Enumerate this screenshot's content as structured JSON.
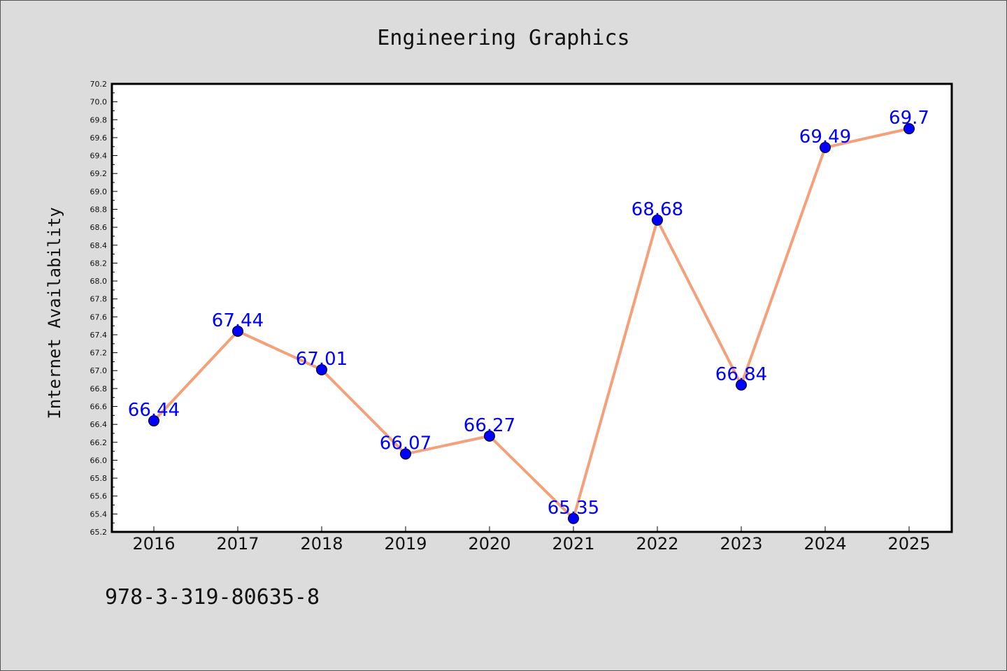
{
  "chart_data": {
    "type": "line",
    "title": "Engineering Graphics",
    "xlabel": "",
    "ylabel": "Internet Availability",
    "categories": [
      "2016",
      "2017",
      "2018",
      "2019",
      "2020",
      "2021",
      "2022",
      "2023",
      "2024",
      "2025"
    ],
    "values": [
      66.44,
      67.44,
      67.01,
      66.07,
      66.27,
      65.35,
      68.68,
      66.84,
      69.49,
      69.7
    ],
    "data_labels": [
      "66.44",
      "67.44",
      "67.01",
      "66.07",
      "66.27",
      "65.35",
      "68.68",
      "66.84",
      "69.49",
      "69.7"
    ],
    "ylim": [
      65.2,
      70.2
    ],
    "yticks": [
      "65.2",
      "65.4",
      "65.6",
      "65.8",
      "66.0",
      "66.2",
      "66.4",
      "66.6",
      "66.8",
      "67.0",
      "67.2",
      "67.4",
      "67.6",
      "67.8",
      "68.0",
      "68.2",
      "68.4",
      "68.6",
      "68.8",
      "69.0",
      "69.2",
      "69.4",
      "69.6",
      "69.8",
      "70.0",
      "70.2"
    ],
    "grid": false,
    "line_color": "#f4a07a",
    "marker_color": "#0000ff",
    "label_color": "#0000ff"
  },
  "footer": {
    "text": "978-3-319-80635-8"
  }
}
